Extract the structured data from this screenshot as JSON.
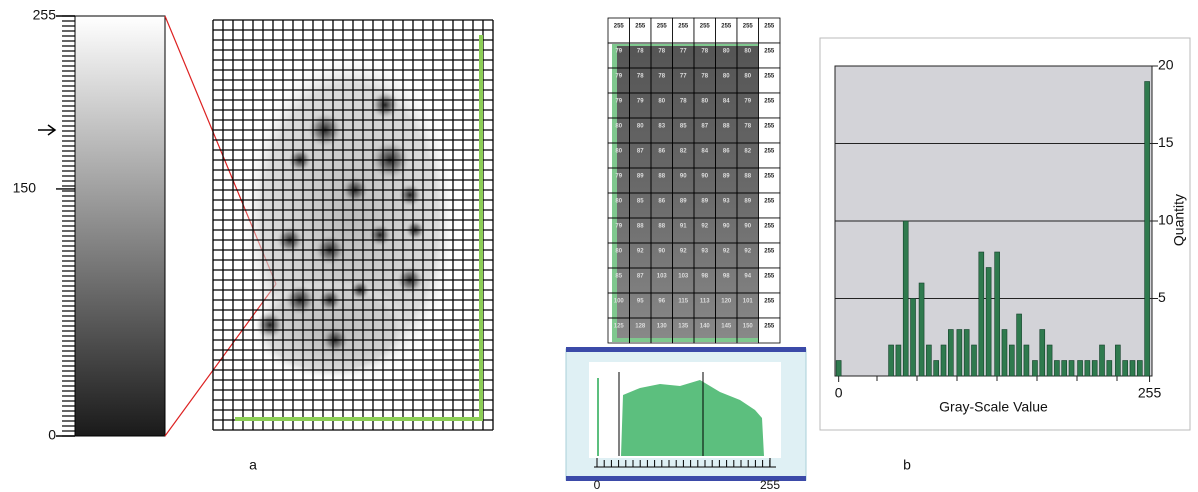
{
  "chart_data": [
    {
      "type": "colorbar",
      "ylim": [
        0,
        255
      ],
      "yticks": [
        0,
        150,
        255
      ]
    },
    {
      "type": "thumbnail-histogram",
      "xlim": [
        0,
        255
      ],
      "xticks": [
        0,
        255
      ]
    },
    {
      "type": "bar",
      "xlabel": "Gray-Scale Value",
      "ylabel": "Quantity",
      "color": "#2f7a4e",
      "x": [
        0,
        43,
        49,
        55,
        61,
        68,
        74,
        80,
        86,
        92,
        99,
        105,
        111,
        117,
        123,
        130,
        136,
        142,
        148,
        154,
        161,
        167,
        173,
        179,
        185,
        191,
        198,
        204,
        210,
        216,
        222,
        229,
        235,
        241,
        247,
        253
      ],
      "values": [
        1,
        2,
        2,
        10,
        5,
        6,
        2,
        1,
        2,
        3,
        3,
        3,
        2,
        8,
        7,
        8,
        3,
        2,
        4,
        2,
        1,
        3,
        2,
        1,
        1,
        1,
        1,
        1,
        1,
        2,
        1,
        2,
        1,
        1,
        1,
        19
      ],
      "xlim": [
        -3,
        257
      ],
      "xticks": [
        0,
        255
      ],
      "ylim": [
        0,
        20
      ],
      "yticks": [
        5,
        10,
        15,
        20
      ],
      "grid": true
    }
  ],
  "table": {
    "rows": [
      [
        "255",
        "255",
        "255",
        "255",
        "255",
        "255",
        "255",
        "255"
      ],
      [
        "79",
        "78",
        "78",
        "77",
        "78",
        "80",
        "80",
        "255"
      ],
      [
        "79",
        "78",
        "78",
        "77",
        "78",
        "80",
        "80",
        "255"
      ],
      [
        "79",
        "79",
        "80",
        "78",
        "80",
        "84",
        "79",
        "255"
      ],
      [
        "80",
        "80",
        "83",
        "85",
        "87",
        "88",
        "78",
        "255"
      ],
      [
        "80",
        "87",
        "86",
        "82",
        "84",
        "86",
        "82",
        "255"
      ],
      [
        "79",
        "89",
        "88",
        "90",
        "90",
        "89",
        "88",
        "255"
      ],
      [
        "80",
        "85",
        "86",
        "89",
        "89",
        "93",
        "89",
        "255"
      ],
      [
        "79",
        "88",
        "88",
        "91",
        "92",
        "90",
        "90",
        "255"
      ],
      [
        "80",
        "92",
        "90",
        "92",
        "93",
        "92",
        "92",
        "255"
      ],
      [
        "85",
        "87",
        "103",
        "103",
        "98",
        "98",
        "94",
        "255"
      ],
      [
        "100",
        "95",
        "96",
        "115",
        "113",
        "120",
        "101",
        "255"
      ],
      [
        "125",
        "128",
        "130",
        "135",
        "140",
        "145",
        "150",
        "255"
      ]
    ]
  },
  "captions": [
    "a",
    "b"
  ]
}
